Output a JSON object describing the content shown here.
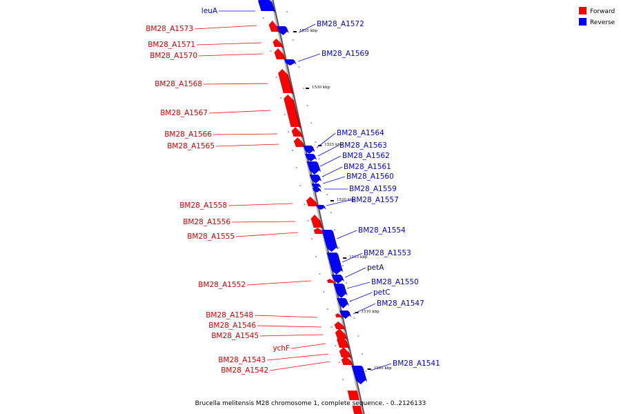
{
  "colors": {
    "forward": "#ff0000",
    "forward_dark": "#a00000",
    "reverse": "#0000ff",
    "reverse_dark": "#000090",
    "forward_text": "#cc0000",
    "reverse_text": "#0000cc",
    "axis": "#999999"
  },
  "legend": {
    "forward_label": "Forward",
    "reverse_label": "Reverse"
  },
  "caption": "Brucella melitensis M28 chromosome 1, complete sequence. - 0..2126133",
  "kbp_marks": [
    "1535 kbp",
    "1530 kbp",
    "1525 kbp",
    "1520 kbp",
    "1515 kbp",
    "1510 kbp",
    "1505 kbp"
  ],
  "genes": [
    {
      "name": "leuA",
      "strand": "reverse"
    },
    {
      "name": "BM28_A1573",
      "strand": "forward"
    },
    {
      "name": "BM28_A1572",
      "strand": "reverse"
    },
    {
      "name": "BM28_A1571",
      "strand": "forward"
    },
    {
      "name": "BM28_A1570",
      "strand": "forward"
    },
    {
      "name": "BM28_A1569",
      "strand": "reverse"
    },
    {
      "name": "BM28_A1568",
      "strand": "forward"
    },
    {
      "name": "BM28_A1567",
      "strand": "forward"
    },
    {
      "name": "BM28_A1566",
      "strand": "forward"
    },
    {
      "name": "BM28_A1565",
      "strand": "forward"
    },
    {
      "name": "BM28_A1564",
      "strand": "reverse"
    },
    {
      "name": "BM28_A1563",
      "strand": "reverse"
    },
    {
      "name": "BM28_A1562",
      "strand": "reverse"
    },
    {
      "name": "BM28_A1561",
      "strand": "reverse"
    },
    {
      "name": "BM28_A1560",
      "strand": "reverse"
    },
    {
      "name": "BM28_A1559",
      "strand": "reverse"
    },
    {
      "name": "BM28_A1558",
      "strand": "forward"
    },
    {
      "name": "BM28_A1557",
      "strand": "reverse"
    },
    {
      "name": "BM28_A1556",
      "strand": "forward"
    },
    {
      "name": "BM28_A1555",
      "strand": "forward"
    },
    {
      "name": "BM28_A1554",
      "strand": "reverse"
    },
    {
      "name": "BM28_A1553",
      "strand": "reverse"
    },
    {
      "name": "petA",
      "strand": "reverse"
    },
    {
      "name": "BM28_A1552",
      "strand": "forward"
    },
    {
      "name": "BM28_A1550",
      "strand": "reverse"
    },
    {
      "name": "petC",
      "strand": "reverse"
    },
    {
      "name": "BM28_A1547",
      "strand": "reverse"
    },
    {
      "name": "BM28_A1548",
      "strand": "forward"
    },
    {
      "name": "BM28_A1546",
      "strand": "forward"
    },
    {
      "name": "BM28_A1545",
      "strand": "forward"
    },
    {
      "name": "ychF",
      "strand": "forward"
    },
    {
      "name": "BM28_A1543",
      "strand": "forward"
    },
    {
      "name": "BM28_A1542",
      "strand": "forward"
    },
    {
      "name": "BM28_A1541",
      "strand": "reverse"
    }
  ]
}
